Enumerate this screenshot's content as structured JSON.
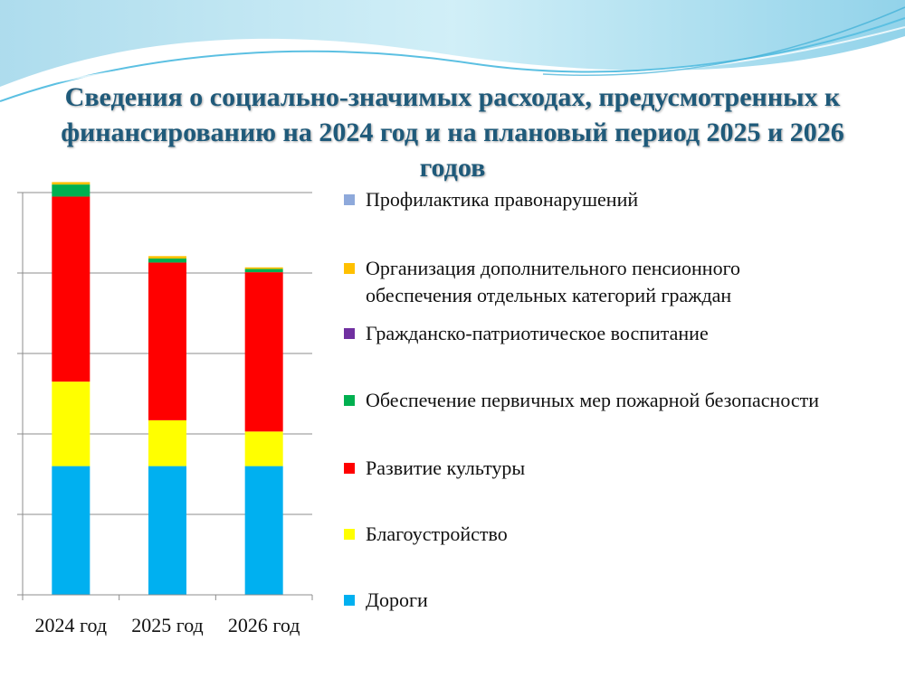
{
  "slide": {
    "title": "Сведения о социально-значимых расходах, предусмотренных к финансированию на 2024 год и на плановый период 2025 и 2026 годов"
  },
  "chart_data": {
    "type": "bar",
    "stacked": true,
    "categories": [
      "2024 год",
      "2025 год",
      "2026 год"
    ],
    "ylim": [
      0,
      500
    ],
    "y_tick_labels_shown": false,
    "grid": "horizontal",
    "legend_position": "right",
    "series": [
      {
        "name": "Дороги",
        "color": "#00b0f0",
        "values": [
          160,
          160,
          160
        ]
      },
      {
        "name": "Благоустройство",
        "color": "#ffff00",
        "values": [
          105,
          57,
          43
        ]
      },
      {
        "name": "Развитие культуры",
        "color": "#ff0000",
        "values": [
          230,
          196,
          198
        ]
      },
      {
        "name": "Обеспечение первичных мер пожарной безопасности",
        "color": "#00b050",
        "values": [
          15,
          5,
          4
        ]
      },
      {
        "name": "Гражданско-патриотическое воспитание",
        "color": "#7030a0",
        "values": [
          0,
          0,
          0
        ]
      },
      {
        "name": "Организация дополнительного пенсионного обеспечения отдельных категорий граждан",
        "color": "#ffc000",
        "values": [
          3,
          3,
          2
        ]
      },
      {
        "name": "Профилактика правонарушений",
        "color": "#8ea9db",
        "values": [
          0,
          0,
          0
        ]
      }
    ]
  }
}
